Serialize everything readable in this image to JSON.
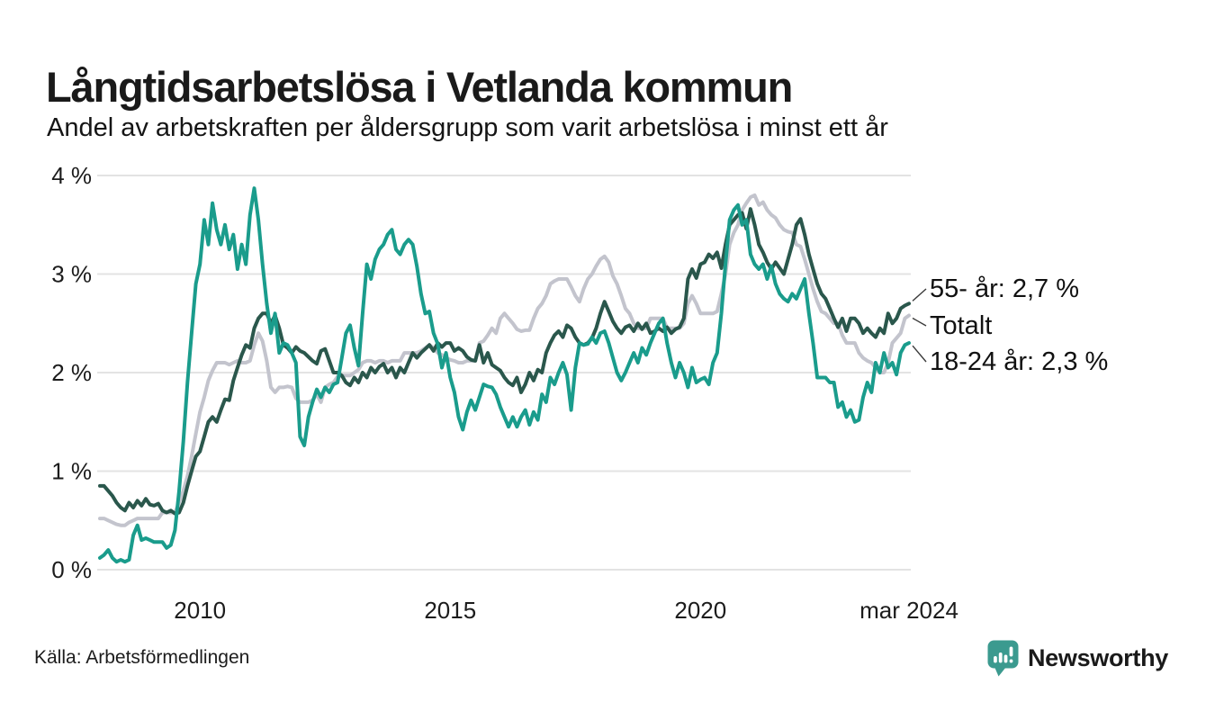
{
  "header": {
    "title": "Långtidsarbetslösa i Vetlanda kommun",
    "subtitle": "Andel av arbetskraften per åldersgrupp som varit arbetslösa i minst ett år"
  },
  "legend": {
    "items": [
      {
        "label": "55- år: 2,7 %",
        "series_index": 1
      },
      {
        "label": "Totalt",
        "series_index": 0
      },
      {
        "label": "18-24 år: 2,3 %",
        "series_index": 2
      }
    ]
  },
  "footer": {
    "source": "Källa: Arbetsförmedlingen",
    "brand": "Newsworthy",
    "brand_color": "#3b9a8f",
    "logo_icon": "bar-chart-speech-bubble"
  },
  "chart_data": {
    "type": "line",
    "title": "Långtidsarbetslösa i Vetlanda kommun",
    "x_start": "2008-01",
    "x_end": "2024-03",
    "x_interval": "monthly",
    "ylim": [
      0,
      4
    ],
    "grid": "horizontal",
    "gridline_color": "#e3e3e3",
    "y_ticks": [
      {
        "value": 0,
        "label": "0 %"
      },
      {
        "value": 1,
        "label": "1 %"
      },
      {
        "value": 2,
        "label": "2 %"
      },
      {
        "value": 3,
        "label": "3 %"
      },
      {
        "value": 4,
        "label": "4 %"
      }
    ],
    "x_ticks": [
      {
        "month_index": 24,
        "label": "2010"
      },
      {
        "month_index": 84,
        "label": "2015"
      },
      {
        "month_index": 144,
        "label": "2020"
      },
      {
        "month_index": 194,
        "label": "mar 2024"
      }
    ],
    "legend_position": "right-end-labels",
    "series": [
      {
        "name": "Totalt",
        "color": "#c3c4cd",
        "end_label": "Totalt",
        "values": [
          0.52,
          0.52,
          0.5,
          0.48,
          0.46,
          0.45,
          0.45,
          0.48,
          0.5,
          0.52,
          0.52,
          0.52,
          0.52,
          0.52,
          0.52,
          0.58,
          0.58,
          0.58,
          0.58,
          0.68,
          0.8,
          0.95,
          1.15,
          1.38,
          1.6,
          1.75,
          1.92,
          2.02,
          2.1,
          2.1,
          2.1,
          2.08,
          2.1,
          2.12,
          2.1,
          2.1,
          2.12,
          2.28,
          2.4,
          2.32,
          2.12,
          1.85,
          1.8,
          1.85,
          1.85,
          1.86,
          1.85,
          1.74,
          1.7,
          1.7,
          1.7,
          1.72,
          1.78,
          1.7,
          1.85,
          1.88,
          1.9,
          1.96,
          1.97,
          1.97,
          1.97,
          2.0,
          2.03,
          2.1,
          2.12,
          2.12,
          2.1,
          2.12,
          2.12,
          2.1,
          2.12,
          2.12,
          2.12,
          2.2,
          2.2,
          2.2,
          2.2,
          2.22,
          2.25,
          2.28,
          2.25,
          2.2,
          2.18,
          2.15,
          2.13,
          2.12,
          2.1,
          2.1,
          2.12,
          2.12,
          2.12,
          2.3,
          2.32,
          2.38,
          2.45,
          2.4,
          2.55,
          2.6,
          2.55,
          2.5,
          2.44,
          2.42,
          2.43,
          2.43,
          2.55,
          2.65,
          2.7,
          2.78,
          2.9,
          2.93,
          2.95,
          2.95,
          2.95,
          2.87,
          2.78,
          2.72,
          2.85,
          2.95,
          3.0,
          3.08,
          3.15,
          3.18,
          3.12,
          2.98,
          2.9,
          2.78,
          2.65,
          2.6,
          2.5,
          2.45,
          2.45,
          2.45,
          2.55,
          2.55,
          2.55,
          2.55,
          2.45,
          2.45,
          2.45,
          2.45,
          2.5,
          2.7,
          2.78,
          2.7,
          2.6,
          2.6,
          2.6,
          2.6,
          2.62,
          2.8,
          3.0,
          3.3,
          3.42,
          3.5,
          3.65,
          3.72,
          3.78,
          3.8,
          3.7,
          3.73,
          3.65,
          3.6,
          3.57,
          3.5,
          3.45,
          3.43,
          3.42,
          3.3,
          3.28,
          3.15,
          3.0,
          2.85,
          2.72,
          2.62,
          2.6,
          2.55,
          2.5,
          2.5,
          2.38,
          2.3,
          2.3,
          2.3,
          2.2,
          2.15,
          2.12,
          2.1,
          2.05,
          2.0,
          2.0,
          2.1,
          2.3,
          2.35,
          2.4,
          2.55,
          2.58
        ]
      },
      {
        "name": "55- år",
        "color": "#2a574c",
        "end_label": "55- år: 2,7 %",
        "end_value": 2.7,
        "values": [
          0.85,
          0.85,
          0.8,
          0.75,
          0.68,
          0.63,
          0.6,
          0.68,
          0.63,
          0.7,
          0.65,
          0.72,
          0.66,
          0.65,
          0.67,
          0.6,
          0.58,
          0.6,
          0.57,
          0.58,
          0.68,
          0.85,
          1.0,
          1.15,
          1.2,
          1.35,
          1.5,
          1.55,
          1.5,
          1.62,
          1.73,
          1.72,
          1.92,
          2.05,
          2.18,
          2.28,
          2.25,
          2.45,
          2.55,
          2.6,
          2.6,
          2.5,
          2.58,
          2.45,
          2.28,
          2.25,
          2.2,
          2.26,
          2.22,
          2.2,
          2.16,
          2.12,
          2.09,
          2.22,
          2.24,
          2.12,
          2.0,
          2.0,
          1.97,
          1.9,
          1.87,
          1.95,
          1.9,
          2.0,
          1.95,
          2.05,
          2.0,
          2.06,
          2.09,
          2.0,
          2.05,
          1.95,
          2.05,
          2.0,
          2.1,
          2.2,
          2.15,
          2.2,
          2.24,
          2.28,
          2.22,
          2.3,
          2.26,
          2.3,
          2.3,
          2.22,
          2.25,
          2.22,
          2.16,
          2.13,
          2.12,
          2.28,
          2.1,
          2.2,
          2.08,
          2.05,
          2.02,
          1.95,
          1.9,
          1.87,
          1.95,
          1.8,
          1.88,
          2.0,
          1.92,
          2.03,
          2.0,
          2.2,
          2.3,
          2.38,
          2.42,
          2.36,
          2.48,
          2.45,
          2.36,
          2.3,
          2.28,
          2.3,
          2.35,
          2.45,
          2.6,
          2.72,
          2.62,
          2.52,
          2.45,
          2.4,
          2.46,
          2.48,
          2.42,
          2.5,
          2.44,
          2.5,
          2.4,
          2.42,
          2.45,
          2.42,
          2.46,
          2.4,
          2.44,
          2.46,
          2.55,
          2.95,
          3.05,
          2.96,
          3.1,
          3.12,
          3.2,
          3.16,
          3.22,
          3.06,
          3.3,
          3.5,
          3.55,
          3.6,
          3.62,
          3.46,
          3.66,
          3.5,
          3.3,
          3.22,
          3.12,
          3.05,
          3.12,
          3.06,
          3.0,
          3.15,
          3.3,
          3.5,
          3.56,
          3.4,
          3.2,
          3.05,
          2.9,
          2.8,
          2.75,
          2.65,
          2.55,
          2.46,
          2.55,
          2.42,
          2.55,
          2.55,
          2.5,
          2.4,
          2.45,
          2.4,
          2.36,
          2.45,
          2.4,
          2.6,
          2.5,
          2.55,
          2.65,
          2.68,
          2.7
        ]
      },
      {
        "name": "18-24 år",
        "color": "#1a9c8c",
        "end_label": "18-24 år: 2,3 %",
        "end_value": 2.3,
        "values": [
          0.12,
          0.15,
          0.2,
          0.12,
          0.08,
          0.1,
          0.08,
          0.1,
          0.35,
          0.45,
          0.3,
          0.32,
          0.3,
          0.28,
          0.28,
          0.28,
          0.22,
          0.25,
          0.4,
          0.8,
          1.3,
          1.9,
          2.4,
          2.9,
          3.1,
          3.55,
          3.3,
          3.72,
          3.45,
          3.3,
          3.5,
          3.25,
          3.4,
          3.05,
          3.3,
          3.1,
          3.6,
          3.87,
          3.55,
          3.1,
          2.7,
          2.4,
          2.6,
          2.2,
          2.3,
          2.28,
          2.2,
          2.1,
          1.35,
          1.26,
          1.55,
          1.7,
          1.83,
          1.75,
          1.85,
          1.8,
          1.88,
          1.9,
          2.15,
          2.4,
          2.48,
          2.25,
          2.07,
          2.6,
          3.1,
          2.95,
          3.15,
          3.25,
          3.3,
          3.4,
          3.45,
          3.25,
          3.2,
          3.3,
          3.35,
          3.3,
          3.08,
          2.8,
          2.6,
          2.62,
          2.4,
          2.29,
          2.05,
          2.2,
          1.95,
          1.8,
          1.55,
          1.42,
          1.6,
          1.72,
          1.62,
          1.75,
          1.88,
          1.86,
          1.85,
          1.78,
          1.65,
          1.55,
          1.45,
          1.55,
          1.45,
          1.55,
          1.62,
          1.47,
          1.6,
          1.52,
          1.78,
          1.7,
          1.95,
          1.88,
          2.0,
          2.1,
          1.98,
          1.62,
          2.05,
          2.3,
          2.28,
          2.29,
          2.36,
          2.3,
          2.4,
          2.42,
          2.3,
          2.15,
          2.0,
          1.92,
          2.0,
          2.1,
          2.2,
          2.1,
          2.25,
          2.18,
          2.3,
          2.4,
          2.5,
          2.55,
          2.3,
          2.1,
          1.95,
          2.1,
          2.0,
          1.85,
          2.05,
          1.9,
          1.93,
          1.95,
          1.88,
          2.1,
          2.2,
          2.6,
          3.1,
          3.55,
          3.65,
          3.7,
          3.5,
          3.55,
          3.2,
          3.1,
          3.05,
          3.1,
          2.95,
          3.08,
          2.9,
          2.8,
          2.75,
          2.72,
          2.8,
          2.75,
          2.85,
          2.95,
          2.6,
          2.3,
          1.95,
          1.95,
          1.95,
          1.9,
          1.9,
          1.65,
          1.7,
          1.55,
          1.62,
          1.5,
          1.52,
          1.75,
          1.9,
          1.8,
          2.1,
          2.0,
          2.2,
          2.05,
          2.1,
          1.98,
          2.2,
          2.28,
          2.3
        ]
      }
    ]
  }
}
